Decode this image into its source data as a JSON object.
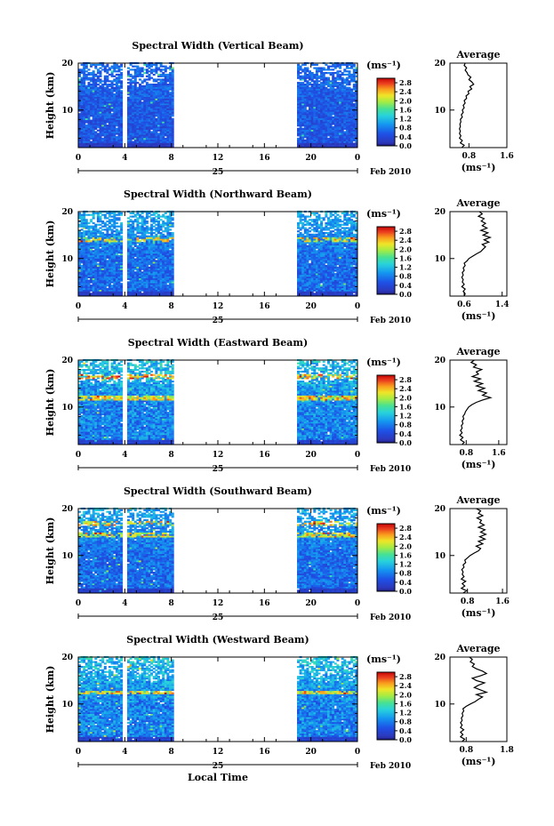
{
  "chart_data": [
    {
      "type": "heatmap",
      "title": "Spectral Width (Vertical Beam)",
      "ylabel": "Height (km)",
      "yticks": [
        "20",
        "10"
      ],
      "ylim": [
        2,
        20
      ],
      "xticks": [
        "0",
        "4",
        "8",
        "12",
        "16",
        "20",
        "0"
      ],
      "xlim": [
        0,
        24
      ],
      "date_day": "25",
      "date_suffix": "Feb 2010",
      "data_segments": [
        [
          0,
          8.2
        ],
        [
          18.8,
          24
        ]
      ],
      "gap_times": [
        4.0
      ],
      "colorbar": {
        "unit": "(ms⁻¹)",
        "ticks": [
          "2.8",
          "2.4",
          "2.0",
          "1.6",
          "1.2",
          "0.8",
          "0.4",
          "0.0"
        ],
        "range": [
          0,
          3.0
        ]
      },
      "average": {
        "title": "Average",
        "xticks": [
          "0.8",
          "1.6"
        ],
        "xlim": [
          0.4,
          1.6
        ],
        "xlabel": "(ms⁻¹)",
        "yticks": [
          "20",
          "10"
        ],
        "ylim": [
          2,
          20
        ],
        "profile": [
          [
            0.65,
            2
          ],
          [
            0.7,
            2.5
          ],
          [
            0.62,
            3
          ],
          [
            0.66,
            3.5
          ],
          [
            0.6,
            4
          ],
          [
            0.63,
            4.5
          ],
          [
            0.6,
            5
          ],
          [
            0.62,
            5.5
          ],
          [
            0.6,
            6
          ],
          [
            0.62,
            6.5
          ],
          [
            0.61,
            7
          ],
          [
            0.63,
            7.5
          ],
          [
            0.62,
            8
          ],
          [
            0.66,
            8.5
          ],
          [
            0.64,
            9
          ],
          [
            0.68,
            9.5
          ],
          [
            0.66,
            10
          ],
          [
            0.7,
            10.5
          ],
          [
            0.68,
            11
          ],
          [
            0.72,
            11.5
          ],
          [
            0.7,
            12
          ],
          [
            0.75,
            12.5
          ],
          [
            0.74,
            13
          ],
          [
            0.8,
            13.5
          ],
          [
            0.78,
            14
          ],
          [
            0.86,
            14.5
          ],
          [
            0.82,
            15
          ],
          [
            0.9,
            15.5
          ],
          [
            0.86,
            16
          ],
          [
            0.8,
            16.5
          ],
          [
            0.84,
            17
          ],
          [
            0.78,
            17.5
          ],
          [
            0.76,
            18
          ],
          [
            0.72,
            18.5
          ],
          [
            0.75,
            19
          ],
          [
            0.7,
            19.5
          ],
          [
            0.72,
            20
          ]
        ]
      },
      "high_rows": [],
      "intensity": "low"
    },
    {
      "type": "heatmap",
      "title": "Spectral Width (Northward Beam)",
      "ylabel": "Height (km)",
      "yticks": [
        "20",
        "10"
      ],
      "ylim": [
        2,
        20
      ],
      "xticks": [
        "0",
        "4",
        "8",
        "12",
        "16",
        "20",
        "0"
      ],
      "xlim": [
        0,
        24
      ],
      "date_day": "25",
      "date_suffix": "Feb 2010",
      "data_segments": [
        [
          0,
          8.2
        ],
        [
          18.8,
          24
        ]
      ],
      "gap_times": [
        4.0
      ],
      "colorbar": {
        "unit": "(ms⁻¹)",
        "ticks": [
          "2.8",
          "2.4",
          "2.0",
          "1.6",
          "1.2",
          "0.8",
          "0.4",
          "0.0"
        ],
        "range": [
          0,
          3.0
        ]
      },
      "average": {
        "title": "Average",
        "xticks": [
          "0.6",
          "1.4"
        ],
        "xlim": [
          0.3,
          1.5
        ],
        "xlabel": "(ms⁻¹)",
        "yticks": [
          "20",
          "10"
        ],
        "ylim": [
          2,
          20
        ],
        "profile": [
          [
            0.6,
            2
          ],
          [
            0.62,
            2.5
          ],
          [
            0.58,
            3
          ],
          [
            0.62,
            3.5
          ],
          [
            0.55,
            4
          ],
          [
            0.6,
            4.5
          ],
          [
            0.56,
            5
          ],
          [
            0.58,
            5.5
          ],
          [
            0.55,
            6
          ],
          [
            0.58,
            6.5
          ],
          [
            0.56,
            7
          ],
          [
            0.6,
            7.5
          ],
          [
            0.58,
            8
          ],
          [
            0.62,
            8.5
          ],
          [
            0.6,
            9
          ],
          [
            0.66,
            9.5
          ],
          [
            0.7,
            10
          ],
          [
            0.78,
            10.5
          ],
          [
            0.86,
            11
          ],
          [
            0.95,
            11.5
          ],
          [
            1.0,
            12
          ],
          [
            1.05,
            12.5
          ],
          [
            0.98,
            13
          ],
          [
            1.12,
            13.5
          ],
          [
            1.02,
            14
          ],
          [
            1.15,
            14.5
          ],
          [
            1.0,
            15
          ],
          [
            1.1,
            15.5
          ],
          [
            0.95,
            16
          ],
          [
            1.08,
            16.5
          ],
          [
            0.98,
            17
          ],
          [
            1.05,
            17.5
          ],
          [
            0.96,
            18
          ],
          [
            1.02,
            18.5
          ],
          [
            0.9,
            19
          ],
          [
            0.98,
            19.5
          ],
          [
            0.92,
            20
          ]
        ]
      },
      "high_rows": [
        [
          14,
          0.55
        ]
      ],
      "intensity": "mid"
    },
    {
      "type": "heatmap",
      "title": "Spectral Width (Eastward Beam)",
      "ylabel": "Height (km)",
      "yticks": [
        "20",
        "10"
      ],
      "ylim": [
        2,
        20
      ],
      "xticks": [
        "0",
        "4",
        "8",
        "12",
        "16",
        "20",
        "0"
      ],
      "xlim": [
        0,
        24
      ],
      "date_day": "25",
      "date_suffix": "Feb 2010",
      "data_segments": [
        [
          0,
          8.2
        ],
        [
          18.8,
          24
        ]
      ],
      "gap_times": [
        4.0
      ],
      "colorbar": {
        "unit": "(ms⁻¹)",
        "ticks": [
          "2.8",
          "2.4",
          "2.0",
          "1.6",
          "1.2",
          "0.8",
          "0.4",
          "0.0"
        ],
        "range": [
          0,
          3.0
        ]
      },
      "average": {
        "title": "Average",
        "xticks": [
          "0.8",
          "1.6"
        ],
        "xlim": [
          0.4,
          1.8
        ],
        "xlabel": "(ms⁻¹)",
        "yticks": [
          "20",
          "10"
        ],
        "ylim": [
          2,
          20
        ],
        "profile": [
          [
            0.7,
            2
          ],
          [
            0.75,
            2.5
          ],
          [
            0.66,
            3
          ],
          [
            0.72,
            3.5
          ],
          [
            0.64,
            4
          ],
          [
            0.7,
            4.5
          ],
          [
            0.66,
            5
          ],
          [
            0.7,
            5.5
          ],
          [
            0.68,
            6
          ],
          [
            0.72,
            6.5
          ],
          [
            0.7,
            7
          ],
          [
            0.74,
            7.5
          ],
          [
            0.72,
            8
          ],
          [
            0.76,
            8.5
          ],
          [
            0.78,
            9
          ],
          [
            0.82,
            9.5
          ],
          [
            0.86,
            10
          ],
          [
            0.94,
            10.5
          ],
          [
            1.05,
            11
          ],
          [
            1.2,
            11.5
          ],
          [
            1.4,
            12
          ],
          [
            1.2,
            12.5
          ],
          [
            1.3,
            13
          ],
          [
            1.1,
            13.5
          ],
          [
            1.25,
            14
          ],
          [
            1.05,
            14.5
          ],
          [
            1.2,
            15
          ],
          [
            1.0,
            15.5
          ],
          [
            1.15,
            16
          ],
          [
            0.95,
            16.5
          ],
          [
            1.1,
            17
          ],
          [
            1.05,
            17.5
          ],
          [
            1.18,
            18
          ],
          [
            0.98,
            18.5
          ],
          [
            1.05,
            19
          ],
          [
            0.92,
            19.5
          ],
          [
            1.0,
            20
          ]
        ]
      },
      "high_rows": [
        [
          12,
          0.9
        ],
        [
          16.5,
          0.7
        ]
      ],
      "intensity": "high"
    },
    {
      "type": "heatmap",
      "title": "Spectral Width (Southward Beam)",
      "ylabel": "Height (km)",
      "yticks": [
        "20",
        "10"
      ],
      "ylim": [
        2,
        20
      ],
      "xticks": [
        "0",
        "4",
        "8",
        "12",
        "16",
        "20",
        "0"
      ],
      "xlim": [
        0,
        24
      ],
      "date_day": "25",
      "date_suffix": "Feb 2010",
      "data_segments": [
        [
          0,
          8.2
        ],
        [
          18.8,
          24
        ]
      ],
      "gap_times": [
        4.0
      ],
      "colorbar": {
        "unit": "(ms⁻¹)",
        "ticks": [
          "2.8",
          "2.4",
          "2.0",
          "1.6",
          "1.2",
          "0.8",
          "0.4",
          "0.0"
        ],
        "range": [
          0,
          3.0
        ]
      },
      "average": {
        "title": "Average",
        "xticks": [
          "0.8",
          "1.6"
        ],
        "xlim": [
          0.4,
          1.7
        ],
        "xlabel": "(ms⁻¹)",
        "yticks": [
          "20",
          "10"
        ],
        "ylim": [
          2,
          20
        ],
        "profile": [
          [
            0.7,
            2
          ],
          [
            0.78,
            2.5
          ],
          [
            0.66,
            3
          ],
          [
            0.74,
            3.5
          ],
          [
            0.68,
            4
          ],
          [
            0.76,
            4.5
          ],
          [
            0.66,
            5
          ],
          [
            0.72,
            5.5
          ],
          [
            0.68,
            6
          ],
          [
            0.7,
            6.5
          ],
          [
            0.67,
            7
          ],
          [
            0.72,
            7.5
          ],
          [
            0.7,
            8
          ],
          [
            0.76,
            8.5
          ],
          [
            0.74,
            9
          ],
          [
            0.8,
            9.5
          ],
          [
            0.86,
            10
          ],
          [
            0.95,
            10.5
          ],
          [
            1.05,
            11
          ],
          [
            1.1,
            11.5
          ],
          [
            1.0,
            12
          ],
          [
            1.15,
            12.5
          ],
          [
            1.05,
            13
          ],
          [
            1.2,
            13.5
          ],
          [
            1.08,
            14
          ],
          [
            1.22,
            14.5
          ],
          [
            1.1,
            15
          ],
          [
            1.2,
            15.5
          ],
          [
            1.05,
            16
          ],
          [
            1.18,
            16.5
          ],
          [
            1.08,
            17
          ],
          [
            1.12,
            17.5
          ],
          [
            1.02,
            18
          ],
          [
            1.15,
            18.5
          ],
          [
            1.05,
            19
          ],
          [
            1.1,
            19.5
          ],
          [
            1.0,
            20
          ]
        ]
      },
      "high_rows": [
        [
          14.5,
          0.65
        ],
        [
          17,
          0.5
        ]
      ],
      "intensity": "mid"
    },
    {
      "type": "heatmap",
      "title": "Spectral Width (Westward Beam)",
      "ylabel": "Height (km)",
      "yticks": [
        "20",
        "10"
      ],
      "ylim": [
        2,
        20
      ],
      "xticks": [
        "0",
        "4",
        "8",
        "12",
        "16",
        "20",
        "0"
      ],
      "xlim": [
        0,
        24
      ],
      "date_day": "25",
      "date_suffix": "Feb 2010",
      "xlabel": "Local Time",
      "data_segments": [
        [
          0,
          8.2
        ],
        [
          18.8,
          24
        ]
      ],
      "gap_times": [
        4.0
      ],
      "colorbar": {
        "unit": "(ms⁻¹)",
        "ticks": [
          "2.8",
          "2.4",
          "2.0",
          "1.6",
          "1.2",
          "0.8",
          "0.4",
          "0.0"
        ],
        "range": [
          0,
          3.0
        ]
      },
      "average": {
        "title": "Average",
        "xticks": [
          "0.8",
          "1.8"
        ],
        "xlim": [
          0.4,
          1.8
        ],
        "xlabel": "(ms⁻¹)",
        "yticks": [
          "20",
          "10"
        ],
        "ylim": [
          2,
          20
        ],
        "profile": [
          [
            0.7,
            2
          ],
          [
            0.76,
            2.5
          ],
          [
            0.66,
            3
          ],
          [
            0.72,
            3.5
          ],
          [
            0.66,
            4
          ],
          [
            0.74,
            4.5
          ],
          [
            0.66,
            5
          ],
          [
            0.7,
            5.5
          ],
          [
            0.66,
            6
          ],
          [
            0.7,
            6.5
          ],
          [
            0.68,
            7
          ],
          [
            0.72,
            7.5
          ],
          [
            0.7,
            8
          ],
          [
            0.74,
            8.5
          ],
          [
            0.72,
            9
          ],
          [
            0.8,
            9.5
          ],
          [
            0.9,
            10
          ],
          [
            1.02,
            10.5
          ],
          [
            1.1,
            11
          ],
          [
            1.2,
            11.5
          ],
          [
            1.05,
            12
          ],
          [
            1.3,
            12.5
          ],
          [
            1.15,
            13
          ],
          [
            1.0,
            13.5
          ],
          [
            1.1,
            14
          ],
          [
            1.25,
            14.5
          ],
          [
            1.05,
            15
          ],
          [
            0.95,
            15.5
          ],
          [
            1.15,
            16
          ],
          [
            1.3,
            16.5
          ],
          [
            1.2,
            17
          ],
          [
            1.05,
            17.5
          ],
          [
            0.95,
            18
          ],
          [
            1.0,
            18.5
          ],
          [
            0.9,
            19
          ],
          [
            0.95,
            19.5
          ],
          [
            0.88,
            20
          ]
        ]
      },
      "high_rows": [
        [
          12.5,
          0.85
        ]
      ],
      "intensity": "high"
    }
  ]
}
